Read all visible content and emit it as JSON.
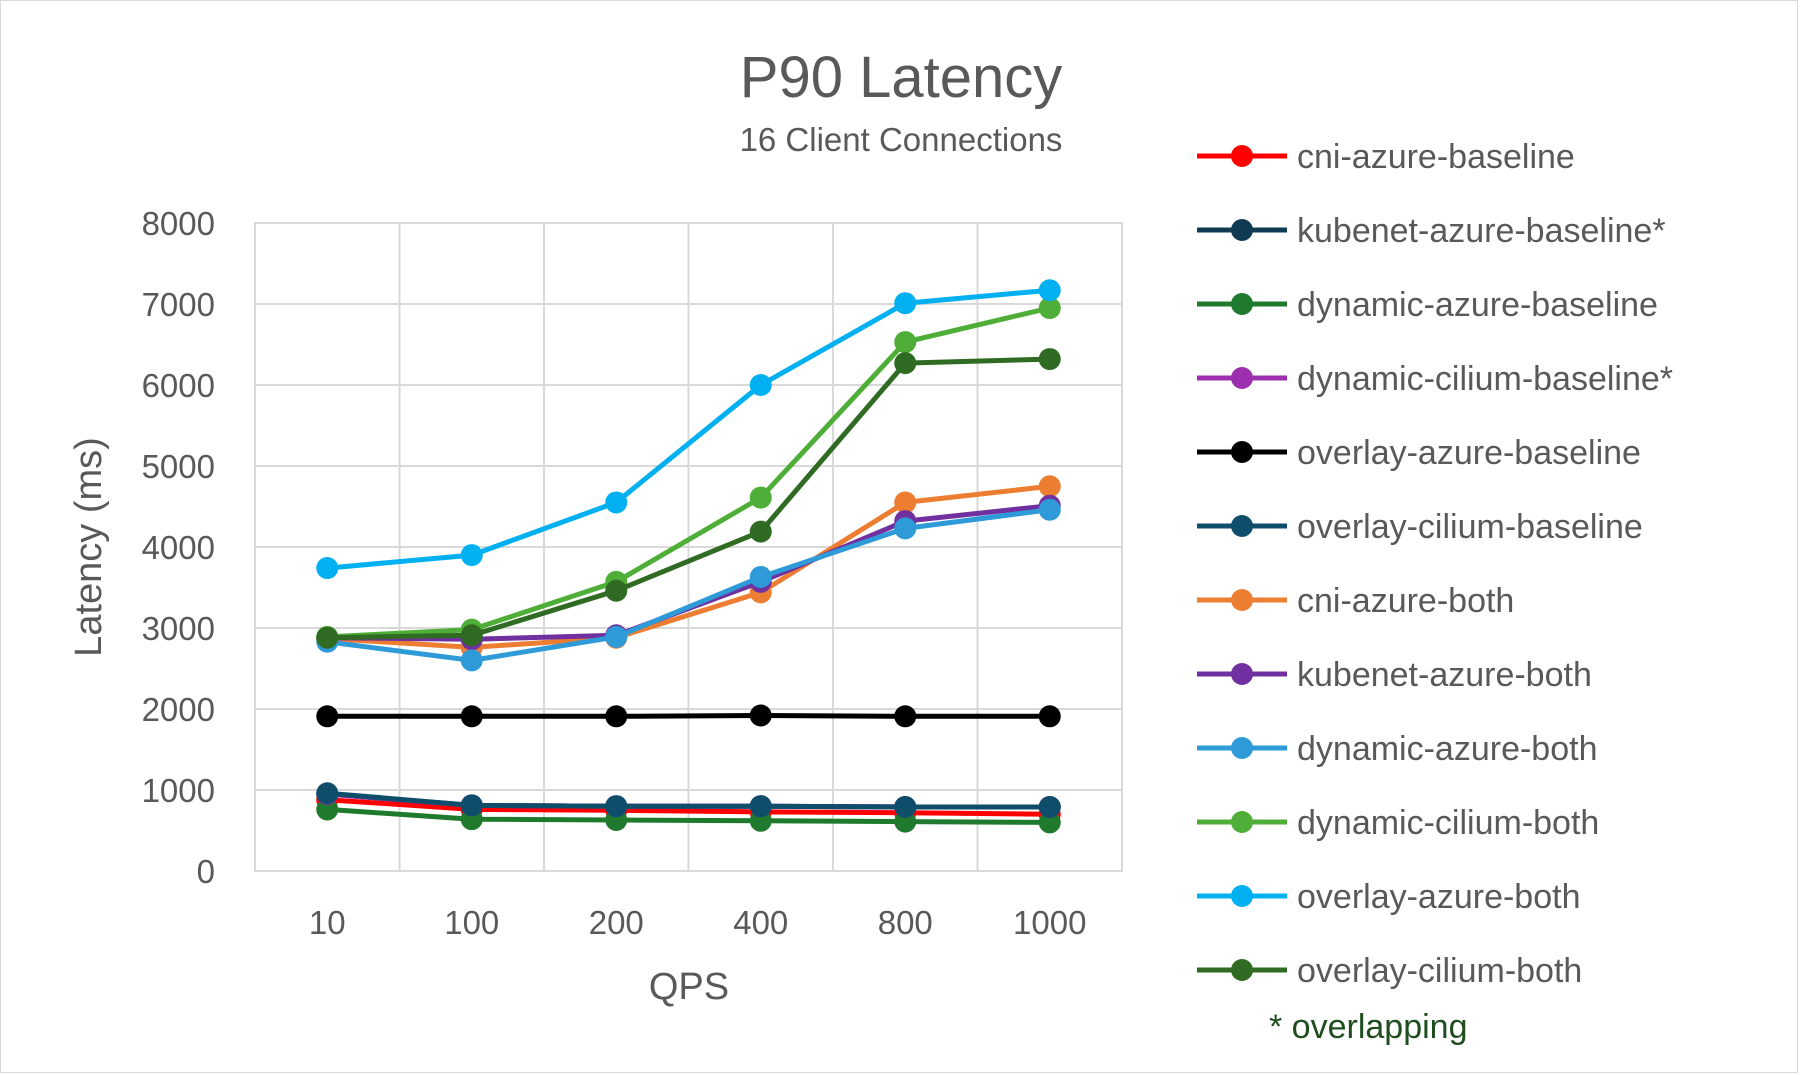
{
  "chart_data": {
    "type": "line",
    "title": "P90 Latency",
    "subtitle": "16 Client Connections",
    "xlabel": "QPS",
    "ylabel": "Latency (ms)",
    "categories": [
      "10",
      "100",
      "200",
      "400",
      "800",
      "1000"
    ],
    "ylim": [
      0,
      8000
    ],
    "yticks": [
      0,
      1000,
      2000,
      3000,
      4000,
      5000,
      6000,
      7000,
      8000
    ],
    "grid": true,
    "legend_position": "right",
    "legend_note": "* overlapping",
    "series": [
      {
        "name": "cni-azure-baseline",
        "color": "#ff0000",
        "values": [
          880,
          760,
          750,
          730,
          720,
          700
        ]
      },
      {
        "name": "kubenet-azure-baseline*",
        "color": "#0e3a52",
        "values": [
          950,
          810,
          800,
          800,
          790,
          790
        ]
      },
      {
        "name": "dynamic-azure-baseline",
        "color": "#1f7a2e",
        "values": [
          760,
          640,
          630,
          620,
          610,
          600
        ]
      },
      {
        "name": "dynamic-cilium-baseline*",
        "color": "#9b2fae",
        "values": [
          950,
          810,
          800,
          800,
          790,
          790
        ]
      },
      {
        "name": "overlay-azure-baseline",
        "color": "#000000",
        "values": [
          1910,
          1910,
          1910,
          1920,
          1910,
          1910
        ]
      },
      {
        "name": "overlay-cilium-baseline",
        "color": "#0f4e6b",
        "values": [
          960,
          810,
          800,
          800,
          790,
          790
        ]
      },
      {
        "name": "cni-azure-both",
        "color": "#ed7d31",
        "values": [
          2870,
          2760,
          2880,
          3440,
          4550,
          4750
        ]
      },
      {
        "name": "kubenet-azure-both",
        "color": "#7030a0",
        "values": [
          2880,
          2860,
          2910,
          3570,
          4320,
          4510
        ]
      },
      {
        "name": "dynamic-azure-both",
        "color": "#2e9bd8",
        "values": [
          2830,
          2600,
          2890,
          3630,
          4230,
          4460
        ]
      },
      {
        "name": "dynamic-cilium-both",
        "color": "#4eae37",
        "values": [
          2890,
          2980,
          3570,
          4610,
          6530,
          6950
        ]
      },
      {
        "name": "overlay-azure-both",
        "color": "#00b0f0",
        "values": [
          3740,
          3900,
          4550,
          6000,
          7010,
          7170
        ]
      },
      {
        "name": "overlay-cilium-both",
        "color": "#2f6b23",
        "values": [
          2880,
          2910,
          3460,
          4190,
          6270,
          6320
        ]
      }
    ]
  }
}
